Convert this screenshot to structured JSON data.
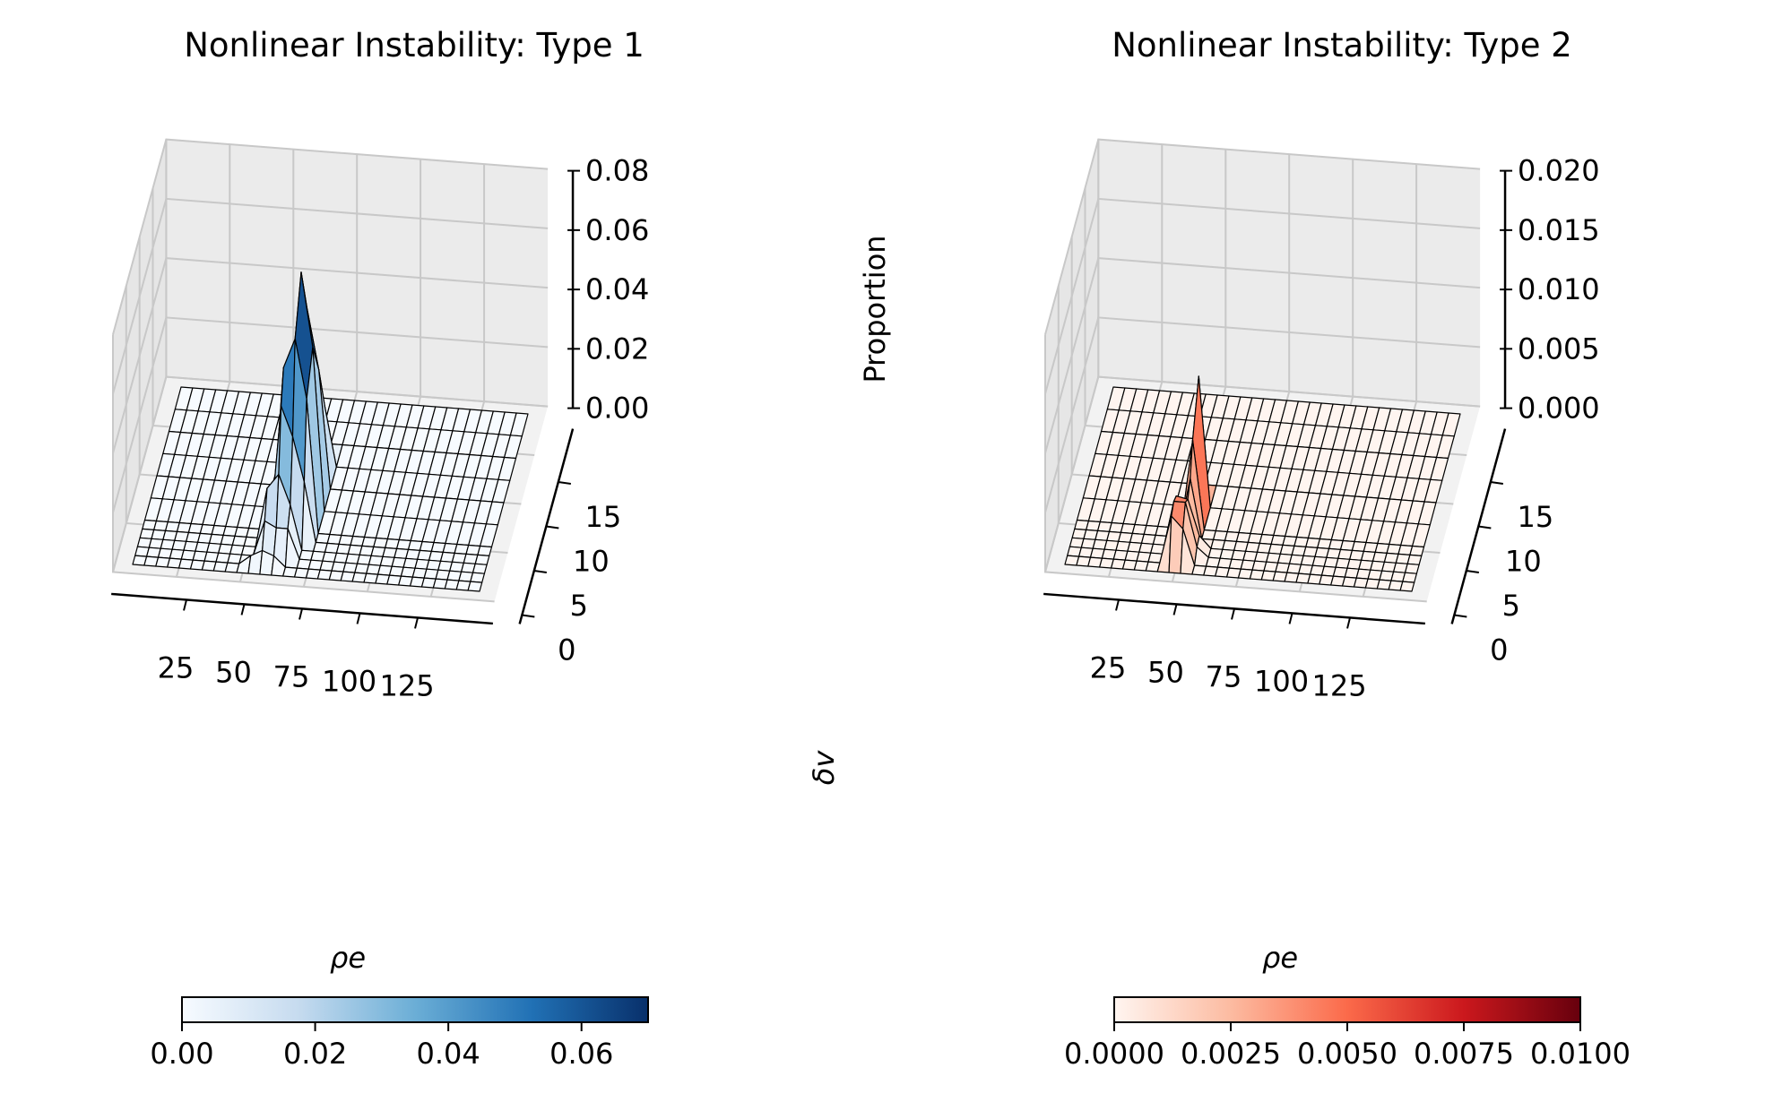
{
  "chart_data": [
    {
      "type": "surface3d",
      "title": "Nonlinear Instability: Type 1",
      "xlabel": "",
      "ylabel": "δv",
      "zlabel": "Proportion",
      "x_ticks": [
        "25",
        "50",
        "75",
        "100",
        "125"
      ],
      "y_ticks": [
        "0",
        "5",
        "10",
        "15"
      ],
      "z_ticks": [
        "0.00",
        "0.02",
        "0.04",
        "0.06",
        "0.08"
      ],
      "xlim": [
        0,
        150
      ],
      "ylim": [
        0,
        20
      ],
      "zlim": [
        0,
        0.08
      ],
      "colorscale": [
        "#f7fbff",
        "#c6dbef",
        "#6baed6",
        "#2171b5",
        "#08306b"
      ],
      "colorbar": {
        "label": "ρe",
        "range": [
          0,
          0.07
        ],
        "ticks": [
          "0.00",
          "0.02",
          "0.04",
          "0.06"
        ]
      },
      "grid_x": [
        0,
        5,
        10,
        15,
        20,
        25,
        30,
        35,
        40,
        45,
        50,
        55,
        60,
        65,
        70,
        75,
        80,
        85,
        90,
        95,
        100,
        105,
        110,
        115,
        120,
        125,
        130,
        135,
        140,
        145,
        150
      ],
      "grid_y": [
        0,
        1,
        2,
        3,
        4,
        5,
        7.5,
        10,
        12.5,
        15,
        17.5,
        20
      ],
      "peaks": [
        {
          "x": 50,
          "y": 1,
          "z": 0.003
        },
        {
          "x": 55,
          "y": 1,
          "z": 0.005
        },
        {
          "x": 60,
          "y": 1,
          "z": 0.0035
        },
        {
          "x": 55,
          "y": 2,
          "z": 0.012
        },
        {
          "x": 60,
          "y": 2,
          "z": 0.01
        },
        {
          "x": 65,
          "y": 2,
          "z": 0.01
        },
        {
          "x": 55,
          "y": 3,
          "z": 0.02
        },
        {
          "x": 60,
          "y": 3,
          "z": 0.025
        },
        {
          "x": 65,
          "y": 3,
          "z": 0.015
        },
        {
          "x": 60,
          "y": 4,
          "z": 0.045
        },
        {
          "x": 65,
          "y": 4,
          "z": 0.035
        },
        {
          "x": 70,
          "y": 4,
          "z": 0.02
        },
        {
          "x": 60,
          "y": 5,
          "z": 0.055
        },
        {
          "x": 65,
          "y": 5,
          "z": 0.065
        },
        {
          "x": 70,
          "y": 5,
          "z": 0.045
        },
        {
          "x": 65,
          "y": 7.5,
          "z": 0.08
        },
        {
          "x": 70,
          "y": 7.5,
          "z": 0.055
        },
        {
          "x": 65,
          "y": 10,
          "z": 0.06
        },
        {
          "x": 70,
          "y": 10,
          "z": 0.04
        },
        {
          "x": 70,
          "y": 12.5,
          "z": 0.02
        }
      ]
    },
    {
      "type": "surface3d",
      "title": "Nonlinear Instability: Type 2",
      "xlabel": "",
      "ylabel": "",
      "zlabel": "",
      "x_ticks": [
        "25",
        "50",
        "75",
        "100",
        "125"
      ],
      "y_ticks": [
        "0",
        "5",
        "10",
        "15"
      ],
      "z_ticks": [
        "0.000",
        "0.005",
        "0.010",
        "0.015",
        "0.020"
      ],
      "xlim": [
        0,
        150
      ],
      "ylim": [
        0,
        20
      ],
      "zlim": [
        0,
        0.02
      ],
      "colorscale": [
        "#fff5f0",
        "#fcbba1",
        "#fb6a4a",
        "#cb181d",
        "#67000d"
      ],
      "colorbar": {
        "label": "ρe",
        "range": [
          0,
          0.01
        ],
        "ticks": [
          "0.0000",
          "0.0025",
          "0.0050",
          "0.0075",
          "0.0100"
        ]
      },
      "grid_x": [
        0,
        5,
        10,
        15,
        20,
        25,
        30,
        35,
        40,
        45,
        50,
        55,
        60,
        65,
        70,
        75,
        80,
        85,
        90,
        95,
        100,
        105,
        110,
        115,
        120,
        125,
        130,
        135,
        140,
        145,
        150
      ],
      "grid_y": [
        0,
        1,
        2,
        3,
        4,
        5,
        7.5,
        10,
        12.5,
        15,
        17.5,
        20
      ],
      "peaks": [
        {
          "x": 45,
          "y": 1,
          "z": 0.004
        },
        {
          "x": 50,
          "y": 1,
          "z": 0.003
        },
        {
          "x": 45,
          "y": 2,
          "z": 0.0045
        },
        {
          "x": 50,
          "y": 2,
          "z": 0.0045
        },
        {
          "x": 45,
          "y": 3,
          "z": 0.0042
        },
        {
          "x": 50,
          "y": 3,
          "z": 0.004
        },
        {
          "x": 50,
          "y": 4,
          "z": 0.005
        },
        {
          "x": 50,
          "y": 5,
          "z": 0.0075
        },
        {
          "x": 50,
          "y": 7.5,
          "z": 0.011
        },
        {
          "x": 55,
          "y": 2,
          "z": 0.0008
        },
        {
          "x": 55,
          "y": 3,
          "z": 0.001
        }
      ]
    }
  ]
}
